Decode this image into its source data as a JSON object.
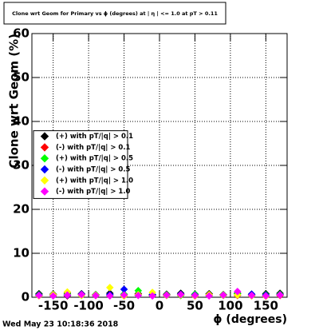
{
  "chart_data": {
    "type": "scatter",
    "title": "Clone wrt Geom for Primary vs ϕ (degrees) at | η | <= 1.0 at pT > 0.11",
    "x_label": "ϕ (degrees)",
    "y_label": "Clone wrt Geom (%)",
    "footer": "Wed May 23 10:18:36 2018",
    "x": [
      -170,
      -150,
      -130,
      -110,
      -90,
      -70,
      -50,
      -30,
      -10,
      10,
      30,
      50,
      70,
      90,
      110,
      130,
      150,
      170
    ],
    "series": [
      {
        "name": "(+) with pT/|q| > 0.1",
        "color": "#000000",
        "values": [
          0.8,
          0.7,
          0.9,
          0.8,
          0.6,
          0.9,
          0.7,
          0.8,
          0.6,
          0.7,
          0.9,
          0.7,
          0.8,
          0.6,
          0.9,
          0.7,
          0.8,
          0.9
        ]
      },
      {
        "name": "(-) with pT/|q| > 0.1",
        "color": "#ff0000",
        "values": [
          0.4,
          0.5,
          0.3,
          0.6,
          0.4,
          0.5,
          0.3,
          0.6,
          0.4,
          0.5,
          0.4,
          0.3,
          0.5,
          0.6,
          0.4,
          0.5,
          0.3,
          0.4
        ]
      },
      {
        "name": "(+) with pT/|q| > 0.5",
        "color": "#00ff00",
        "values": [
          0.6,
          0.5,
          0.7,
          0.4,
          0.6,
          0.5,
          0.7,
          1.5,
          0.5,
          0.6,
          0.4,
          0.7,
          0.5,
          0.6,
          0.8,
          0.5,
          0.6,
          0.7
        ]
      },
      {
        "name": "(-) with pT/|q| > 0.5",
        "color": "#0000ff",
        "values": [
          0.5,
          0.6,
          0.4,
          0.7,
          0.5,
          0.6,
          1.8,
          0.5,
          0.6,
          0.4,
          0.7,
          0.5,
          0.6,
          0.4,
          0.5,
          0.7,
          0.5,
          0.6
        ]
      },
      {
        "name": "(+) with pT/|q| > 1.0",
        "color": "#ffff00",
        "values": [
          0.3,
          0.6,
          1.2,
          0.4,
          0.5,
          2.2,
          0.3,
          0.6,
          1.1,
          0.4,
          0.5,
          0.3,
          0.6,
          0.4,
          0.5,
          0.3,
          0.2,
          0.5
        ]
      },
      {
        "name": "(-) with pT/|q| > 1.0",
        "color": "#ff00ff",
        "values": [
          0.4,
          0.3,
          0.5,
          0.6,
          0.4,
          0.3,
          0.5,
          0.4,
          0.3,
          0.5,
          0.6,
          0.4,
          0.3,
          0.5,
          1.3,
          0.4,
          0.3,
          0.5
        ]
      }
    ],
    "xlim": [
      -180,
      180
    ],
    "ylim": [
      0,
      60
    ],
    "xticks": [
      -150,
      -100,
      -50,
      0,
      50,
      100,
      150
    ],
    "yticks": [
      0,
      10,
      20,
      30,
      40,
      50,
      60
    ],
    "grid": true,
    "legend": "left"
  }
}
